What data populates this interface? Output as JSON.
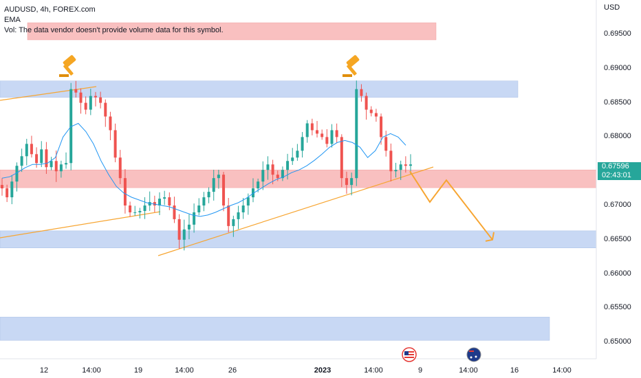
{
  "legend": {
    "symbol": "AUDUSD, 4h, FOREX.com",
    "ema": "EMA",
    "vol": "Vol: The data vendor doesn't provide volume data for this symbol."
  },
  "axis": {
    "currency": "USD",
    "y_ticks": [
      "0.69500",
      "0.69000",
      "0.68500",
      "0.68000",
      "0.67500",
      "0.67000",
      "0.66500",
      "0.66000",
      "0.65500",
      "0.65000"
    ],
    "x_ticks": [
      {
        "label": "12",
        "bold": false
      },
      {
        "label": "14:00",
        "bold": false
      },
      {
        "label": "19",
        "bold": false
      },
      {
        "label": "14:00",
        "bold": false
      },
      {
        "label": "26",
        "bold": false
      },
      {
        "label": "2023",
        "bold": true
      },
      {
        "label": "14:00",
        "bold": false
      },
      {
        "label": "9",
        "bold": false
      },
      {
        "label": "14:00",
        "bold": false
      },
      {
        "label": "16",
        "bold": false
      },
      {
        "label": "14:00",
        "bold": false
      }
    ]
  },
  "price_badge": {
    "price": "0.67596",
    "countdown": "02:43:01"
  },
  "colors": {
    "up": "#26a69a",
    "down": "#ef5350",
    "ema": "#2196f3",
    "trendline": "#f7a531",
    "demand_zone": "#c8d8f4",
    "supply_zone": "#f9c0c0"
  },
  "icons": [
    "gavel-icon",
    "gavel-icon",
    "us-flag-icon",
    "australia-flag-icon"
  ],
  "chart_data": {
    "type": "candlestick",
    "symbol": "AUDUSD",
    "timeframe": "4h",
    "ylim": [
      0.6468,
      0.6975
    ],
    "y_ticks": [
      0.695,
      0.69,
      0.685,
      0.68,
      0.675,
      0.67,
      0.665,
      0.66,
      0.655,
      0.65
    ],
    "last_price": 0.67596,
    "zones": [
      {
        "kind": "demand",
        "from": 0.6858,
        "to": 0.6882,
        "x_start": 0,
        "x_end": 0.807
      },
      {
        "kind": "supply",
        "from": 0.6726,
        "to": 0.6752,
        "x_start": 0,
        "x_end": 0.932
      },
      {
        "kind": "demand",
        "from": 0.6638,
        "to": 0.6663,
        "x_start": 0,
        "x_end": 0.932
      },
      {
        "kind": "demand",
        "from": 0.6503,
        "to": 0.6537,
        "x_start": 0,
        "x_end": 0.857
      },
      {
        "kind": "supply",
        "from": 0.6942,
        "to": 0.6967,
        "x_start": 0.043,
        "x_end": 0.68
      }
    ],
    "candle_closes": [
      0.6725,
      0.6712,
      0.6735,
      0.6758,
      0.6772,
      0.679,
      0.6775,
      0.6762,
      0.6782,
      0.6756,
      0.6765,
      0.675,
      0.676,
      0.6762,
      0.687,
      0.6865,
      0.685,
      0.684,
      0.686,
      0.6858,
      0.685,
      0.683,
      0.681,
      0.677,
      0.674,
      0.67,
      0.669,
      0.669,
      0.6692,
      0.67,
      0.6705,
      0.67,
      0.671,
      0.6712,
      0.67,
      0.668,
      0.665,
      0.6665,
      0.6672,
      0.669,
      0.67,
      0.6712,
      0.672,
      0.674,
      0.6745,
      0.67,
      0.667,
      0.668,
      0.669,
      0.67,
      0.6712,
      0.6725,
      0.6735,
      0.6752,
      0.676,
      0.6745,
      0.674,
      0.6752,
      0.6765,
      0.677,
      0.678,
      0.68,
      0.682,
      0.681,
      0.6805,
      0.68,
      0.679,
      0.681,
      0.68,
      0.674,
      0.673,
      0.674,
      0.687,
      0.686,
      0.684,
      0.6835,
      0.683,
      0.68,
      0.678,
      0.675,
      0.6752,
      0.676,
      0.6758,
      0.676
    ],
    "ema_line": [
      0.674,
      0.6742,
      0.6748,
      0.6755,
      0.676,
      0.676,
      0.6762,
      0.677,
      0.68,
      0.6815,
      0.682,
      0.6808,
      0.679,
      0.6765,
      0.6745,
      0.6728,
      0.6718,
      0.6712,
      0.6708,
      0.6704,
      0.6702,
      0.67,
      0.6698,
      0.6694,
      0.669,
      0.6686,
      0.6684,
      0.6686,
      0.669,
      0.6695,
      0.67,
      0.6704,
      0.671,
      0.6718,
      0.6725,
      0.6732,
      0.6738,
      0.6742,
      0.6748,
      0.6752,
      0.6758,
      0.6766,
      0.6775,
      0.6785,
      0.6792,
      0.6795,
      0.6792,
      0.6785,
      0.677,
      0.678,
      0.68,
      0.6805,
      0.68,
      0.6788
    ],
    "trendlines": [
      {
        "from": [
          "start",
          0.6837
        ],
        "to": [
          "14:00",
          0.686
        ]
      },
      {
        "from": [
          "start",
          0.665
        ],
        "to": [
          "19",
          0.67
        ]
      },
      {
        "from": [
          "19",
          0.6634
        ],
        "to": [
          "projection",
          0.6765
        ]
      }
    ],
    "projection_path": [
      0.675,
      0.6705,
      0.6737,
      0.665
    ]
  }
}
